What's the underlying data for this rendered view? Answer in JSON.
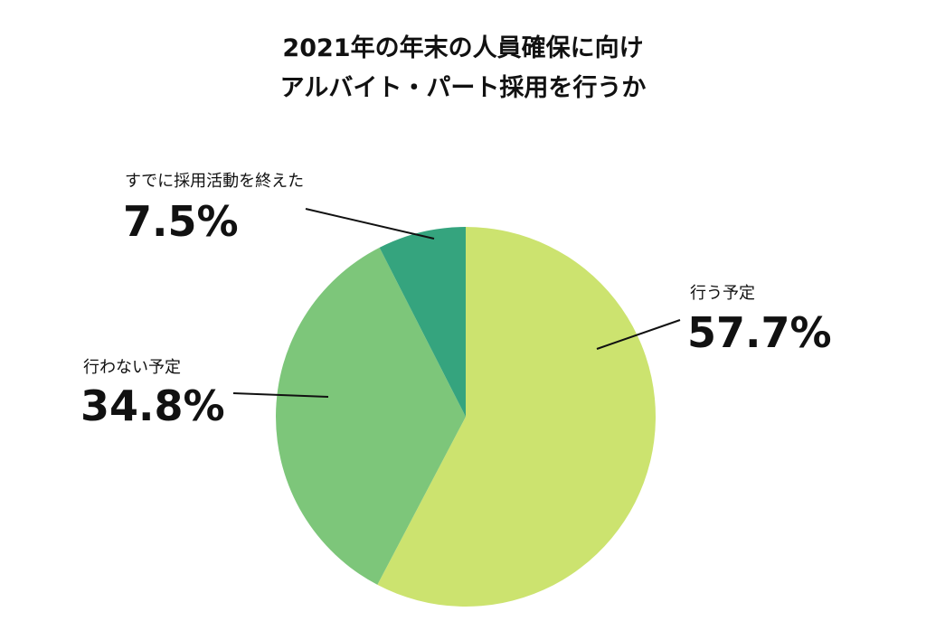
{
  "chart_data": {
    "type": "pie",
    "title": [
      "2021年の年末の人員確保に向け",
      "アルバイト・パート採用を行うか"
    ],
    "start": "top",
    "direction": "clockwise",
    "slices": [
      {
        "label": "行う予定",
        "value": 57.7,
        "display": "57.7%",
        "color": "#cce36f"
      },
      {
        "label": "行わない予定",
        "value": 34.8,
        "display": "34.8%",
        "color": "#7dc67a"
      },
      {
        "label": "すでに採用活動を終えた",
        "value": 7.5,
        "display": "7.5%",
        "color": "#35a47e"
      }
    ]
  }
}
